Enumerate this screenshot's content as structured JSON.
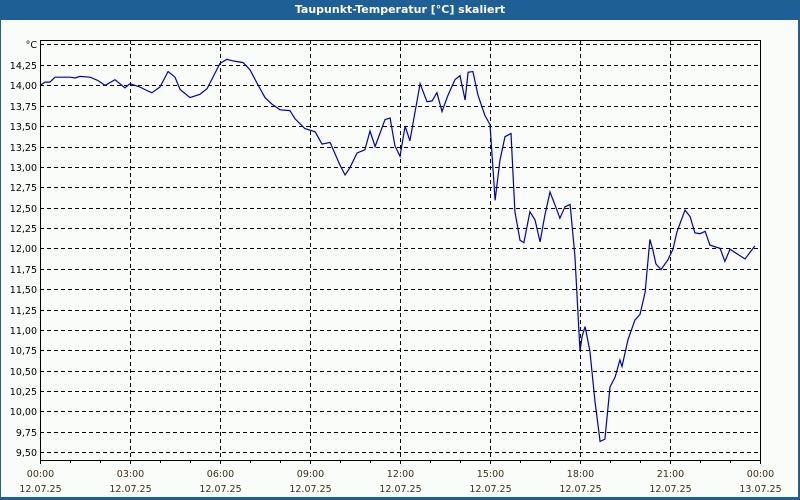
{
  "window": {
    "title": "Taupunkt-Temperatur [°C] skaliert",
    "background": "#1e5f96",
    "plot_background": "#fafcfa",
    "line_color": "#0000b4"
  },
  "chart_data": {
    "type": "line",
    "title": "Taupunkt-Temperatur [°C] skaliert",
    "xlabel": "",
    "ylabel": "°C",
    "ylim": [
      9.4,
      14.55
    ],
    "xlim_hours": [
      0,
      24
    ],
    "grid": true,
    "grid_style": "dashed",
    "legend": "none",
    "y_ticks": [
      "14,25",
      "14,00",
      "13,75",
      "13,50",
      "13,25",
      "13,00",
      "12,75",
      "12,50",
      "12,25",
      "12,00",
      "11,75",
      "11,50",
      "11,25",
      "11,00",
      "10,75",
      "10,50",
      "10,25",
      "10,00",
      "9,75",
      "9,50"
    ],
    "y_tick_values": [
      14.25,
      14.0,
      13.75,
      13.5,
      13.25,
      13.0,
      12.75,
      12.5,
      12.25,
      12.0,
      11.75,
      11.5,
      11.25,
      11.0,
      10.75,
      10.5,
      10.25,
      10.0,
      9.75,
      9.5
    ],
    "x_ticks": [
      {
        "time": "00:00",
        "date": "12.07.25",
        "hour": 0
      },
      {
        "time": "03:00",
        "date": "12.07.25",
        "hour": 3
      },
      {
        "time": "06:00",
        "date": "12.07.25",
        "hour": 6
      },
      {
        "time": "09:00",
        "date": "12.07.25",
        "hour": 9
      },
      {
        "time": "12:00",
        "date": "12.07.25",
        "hour": 12
      },
      {
        "time": "15:00",
        "date": "12.07.25",
        "hour": 15
      },
      {
        "time": "18:00",
        "date": "12.07.25",
        "hour": 18
      },
      {
        "time": "21:00",
        "date": "12.07.25",
        "hour": 21
      },
      {
        "time": "00:00",
        "date": "13.07.25",
        "hour": 24
      }
    ],
    "series": [
      {
        "name": "Taupunkt-Temperatur",
        "x_hours": [
          0.0,
          0.17,
          0.33,
          0.5,
          1.0,
          1.17,
          1.33,
          1.67,
          1.93,
          2.17,
          2.5,
          2.83,
          3.0,
          3.33,
          3.6,
          3.73,
          4.0,
          4.27,
          4.5,
          4.67,
          5.0,
          5.33,
          5.57,
          6.0,
          6.23,
          6.43,
          6.77,
          7.0,
          7.23,
          7.5,
          7.73,
          8.0,
          8.33,
          8.5,
          8.83,
          9.17,
          9.4,
          9.67,
          10.0,
          10.17,
          10.33,
          10.57,
          10.83,
          11.0,
          11.17,
          11.5,
          11.67,
          11.83,
          12.0,
          12.17,
          12.33,
          12.67,
          12.9,
          13.07,
          13.23,
          13.4,
          13.6,
          13.83,
          14.0,
          14.17,
          14.27,
          14.43,
          14.6,
          14.83,
          15.0,
          15.17,
          15.33,
          15.5,
          15.7,
          15.83,
          16.0,
          16.13,
          16.33,
          16.5,
          16.67,
          16.83,
          17.0,
          17.17,
          17.33,
          17.5,
          17.67,
          17.83,
          18.0,
          18.07,
          18.17,
          18.33,
          18.5,
          18.67,
          18.83,
          19.0,
          19.17,
          19.33,
          19.4,
          19.6,
          19.83,
          20.0,
          20.17,
          20.33,
          20.43,
          20.53,
          20.7,
          20.93,
          21.1,
          21.23,
          21.5,
          21.67,
          21.83,
          22.0,
          22.17,
          22.33,
          22.67,
          22.83,
          23.0,
          23.5,
          23.83
        ],
        "values": [
          14.0,
          14.04,
          14.04,
          14.1,
          14.1,
          14.09,
          14.11,
          14.1,
          14.06,
          14.0,
          14.07,
          13.97,
          14.02,
          13.98,
          13.93,
          13.91,
          13.98,
          14.17,
          14.1,
          13.95,
          13.85,
          13.89,
          13.96,
          14.27,
          14.32,
          14.3,
          14.28,
          14.19,
          14.03,
          13.85,
          13.77,
          13.7,
          13.69,
          13.59,
          13.47,
          13.43,
          13.28,
          13.3,
          13.02,
          12.9,
          12.99,
          13.17,
          13.21,
          13.44,
          13.25,
          13.58,
          13.6,
          13.26,
          13.13,
          13.5,
          13.32,
          14.02,
          13.8,
          13.81,
          13.91,
          13.68,
          13.88,
          14.07,
          14.12,
          13.82,
          14.16,
          14.17,
          13.88,
          13.63,
          13.52,
          12.59,
          13.08,
          13.37,
          13.41,
          12.45,
          12.1,
          12.07,
          12.45,
          12.35,
          12.08,
          12.41,
          12.69,
          12.53,
          12.37,
          12.51,
          12.54,
          11.91,
          10.74,
          10.92,
          11.04,
          10.74,
          10.12,
          9.63,
          9.66,
          10.3,
          10.42,
          10.63,
          10.55,
          10.88,
          11.12,
          11.19,
          11.46,
          12.11,
          11.98,
          11.81,
          11.74,
          11.86,
          11.99,
          12.2,
          12.47,
          12.39,
          12.19,
          12.18,
          12.21,
          12.04,
          12.0,
          11.84,
          11.99,
          11.87,
          12.03
        ]
      }
    ]
  }
}
